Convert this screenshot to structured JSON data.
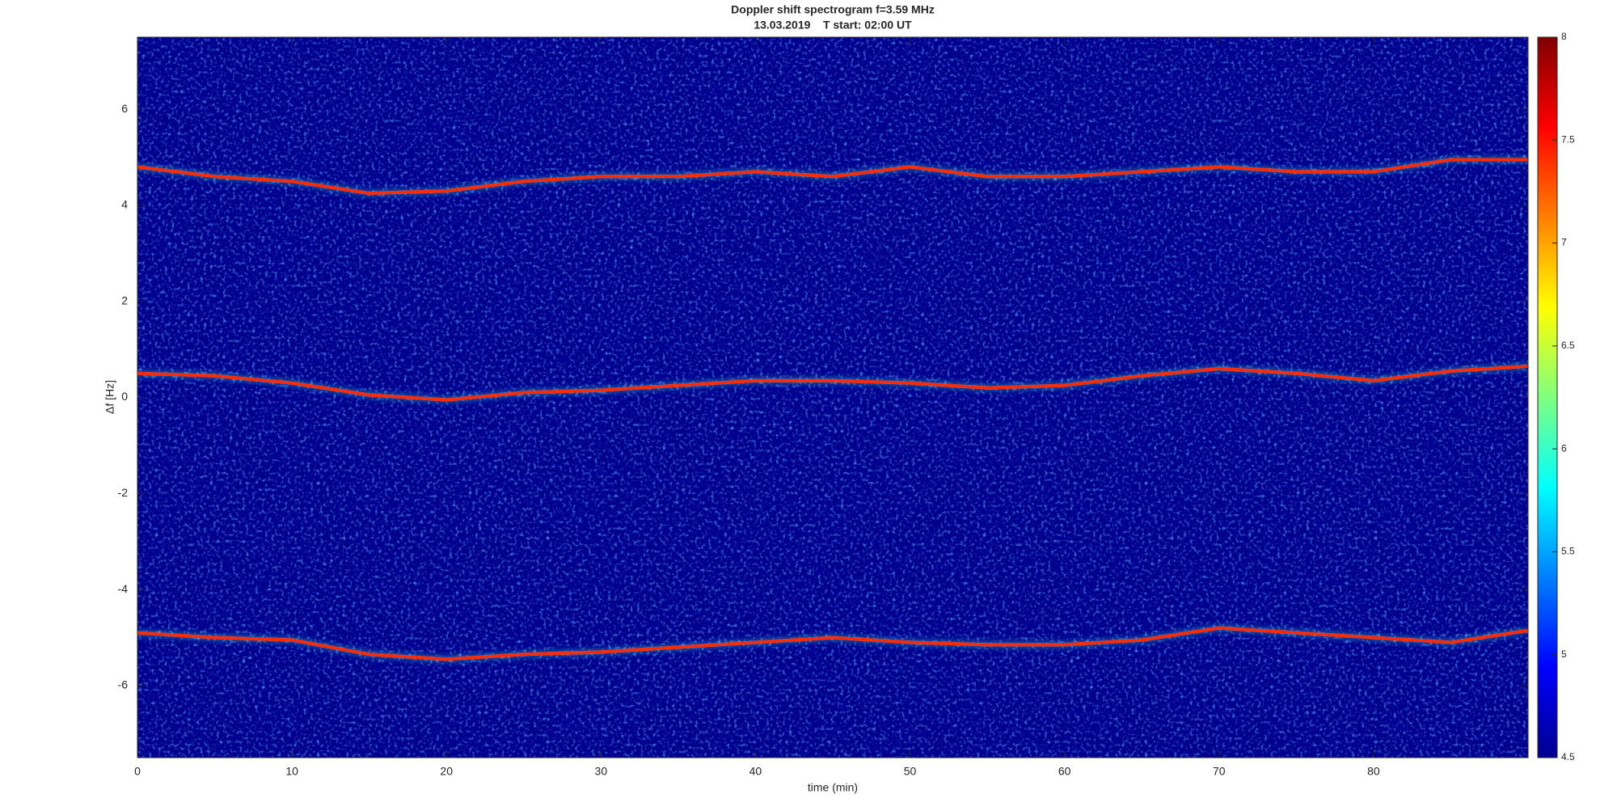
{
  "chart_data": {
    "type": "line",
    "title": "Doppler shift spectrogram f=3.59 MHz",
    "subtitle": "13.03.2019    T start: 02:00 UT",
    "x_label": "time (min)",
    "y_label": "Δf [Hz]",
    "x": [
      0,
      5,
      10,
      15,
      20,
      25,
      30,
      35,
      40,
      45,
      50,
      55,
      60,
      65,
      70,
      75,
      80,
      85,
      90
    ],
    "series": [
      {
        "color": "#ff2a00",
        "values": [
          4.8,
          4.6,
          4.5,
          4.25,
          4.3,
          4.5,
          4.6,
          4.6,
          4.7,
          4.6,
          4.8,
          4.6,
          4.6,
          4.7,
          4.8,
          4.7,
          4.7,
          4.95,
          4.95
        ]
      },
      {
        "color": "#ff2a00",
        "values": [
          0.5,
          0.45,
          0.3,
          0.05,
          -0.05,
          0.1,
          0.15,
          0.25,
          0.35,
          0.35,
          0.3,
          0.2,
          0.25,
          0.45,
          0.6,
          0.5,
          0.35,
          0.55,
          0.65
        ]
      },
      {
        "color": "#ff2a00",
        "values": [
          -4.9,
          -5.0,
          -5.05,
          -5.35,
          -5.45,
          -5.35,
          -5.3,
          -5.2,
          -5.1,
          -5.0,
          -5.1,
          -5.15,
          -5.15,
          -5.05,
          -4.8,
          -4.9,
          -5.0,
          -5.1,
          -4.85
        ]
      }
    ],
    "xlim": [
      0,
      90
    ],
    "xticks": [
      0,
      10,
      20,
      30,
      40,
      50,
      60,
      70,
      80
    ],
    "ylim": [
      -7.5,
      7.5
    ],
    "yticks": [
      -6,
      -4,
      -2,
      0,
      2,
      4,
      6
    ],
    "colorbar": {
      "lim": [
        4.5,
        8
      ],
      "ticks": [
        4.5,
        5,
        5.5,
        6,
        6.5,
        7,
        7.5,
        8
      ]
    }
  }
}
